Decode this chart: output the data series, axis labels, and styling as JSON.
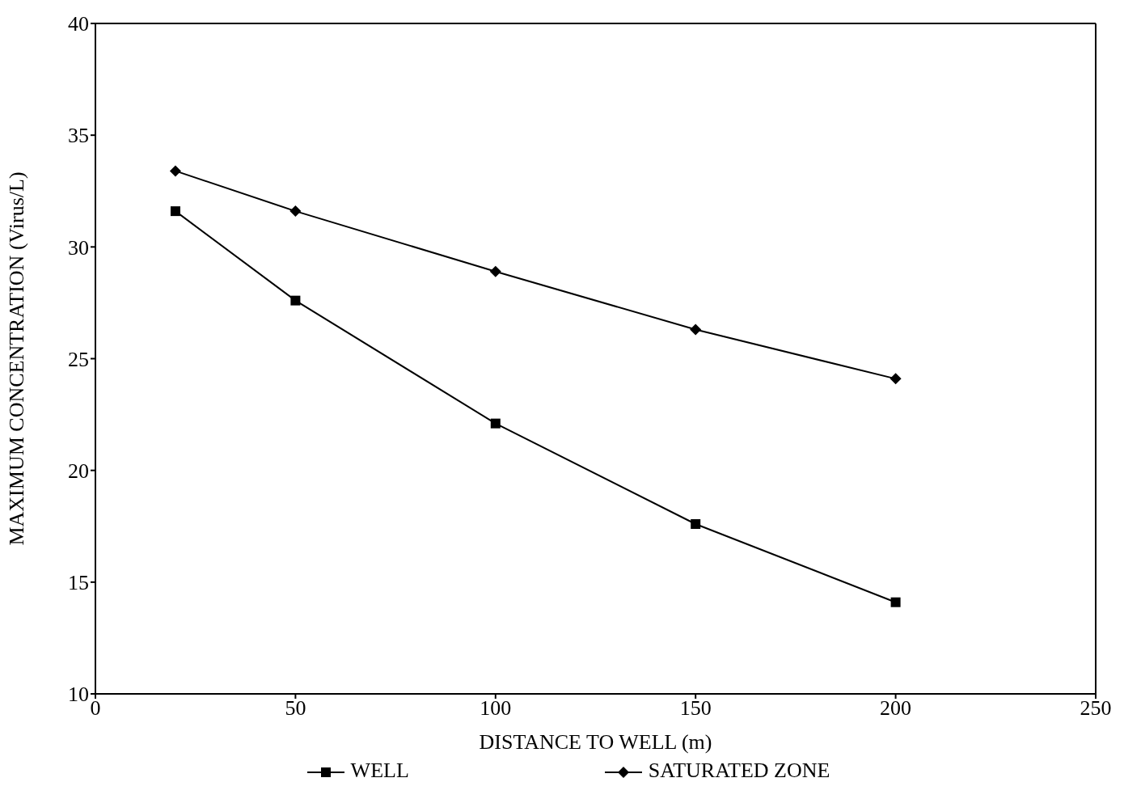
{
  "chart_data": {
    "type": "line",
    "xlabel": "DISTANCE TO WELL (m)",
    "ylabel": "MAXIMUM CONCENTRATION (Virus/L)",
    "x": [
      20,
      50,
      100,
      150,
      200
    ],
    "series": [
      {
        "name": "WELL",
        "color": "#000000",
        "marker": "square",
        "values": [
          31.6,
          27.6,
          22.1,
          17.6,
          14.1
        ]
      },
      {
        "name": "SATURATED ZONE",
        "color": "#000000",
        "marker": "diamond",
        "values": [
          33.4,
          31.6,
          28.9,
          26.3,
          24.1
        ]
      }
    ],
    "xlim": [
      0,
      250
    ],
    "xticks": [
      0,
      50,
      100,
      150,
      200,
      250
    ],
    "ylim": [
      10,
      40
    ],
    "yticks": [
      10,
      15,
      20,
      25,
      30,
      35,
      40
    ],
    "grid": false,
    "legend": "bottom",
    "line_style": "solid"
  }
}
